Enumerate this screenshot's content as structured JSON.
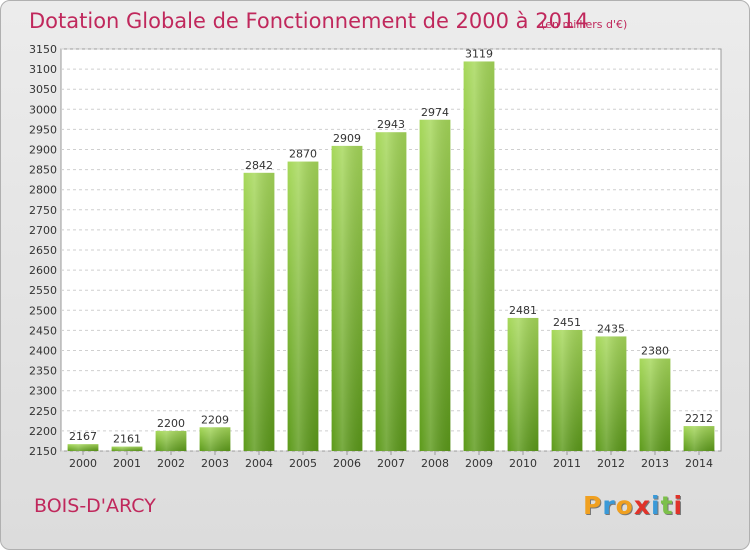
{
  "header": {
    "title": "Dotation Globale de Fonctionnement de 2000 à 2014",
    "subtitle": "(en milliers d'€)"
  },
  "footer": {
    "commune": "BOIS-D'ARCY",
    "logo_letters": [
      "P",
      "r",
      "o",
      "x",
      "i",
      "t",
      "i"
    ],
    "logo_colors": [
      "#f0a020",
      "#3a9ad8",
      "#f0a020",
      "#e0332a",
      "#3a9ad8",
      "#7cc04a",
      "#e0332a"
    ]
  },
  "colors": {
    "bar_top": "#a6d85a",
    "bar_bottom": "#5c9a1a",
    "text": "#333333",
    "accent": "#c0285c"
  },
  "chart_data": {
    "type": "bar",
    "title": "Dotation Globale de Fonctionnement de 2000 à 2014",
    "subtitle": "(en milliers d'€)",
    "categories": [
      "2000",
      "2001",
      "2002",
      "2003",
      "2004",
      "2005",
      "2006",
      "2007",
      "2008",
      "2009",
      "2010",
      "2011",
      "2012",
      "2013",
      "2014"
    ],
    "values": [
      2167,
      2161,
      2200,
      2209,
      2842,
      2870,
      2909,
      2943,
      2974,
      3119,
      2481,
      2451,
      2435,
      2380,
      2212
    ],
    "ylim": [
      2150,
      3150
    ],
    "yticks": [
      2150,
      2200,
      2250,
      2300,
      2350,
      2400,
      2450,
      2500,
      2550,
      2600,
      2650,
      2700,
      2750,
      2800,
      2850,
      2900,
      2950,
      3000,
      3050,
      3100,
      3150
    ],
    "grid": true,
    "data_labels": true
  }
}
